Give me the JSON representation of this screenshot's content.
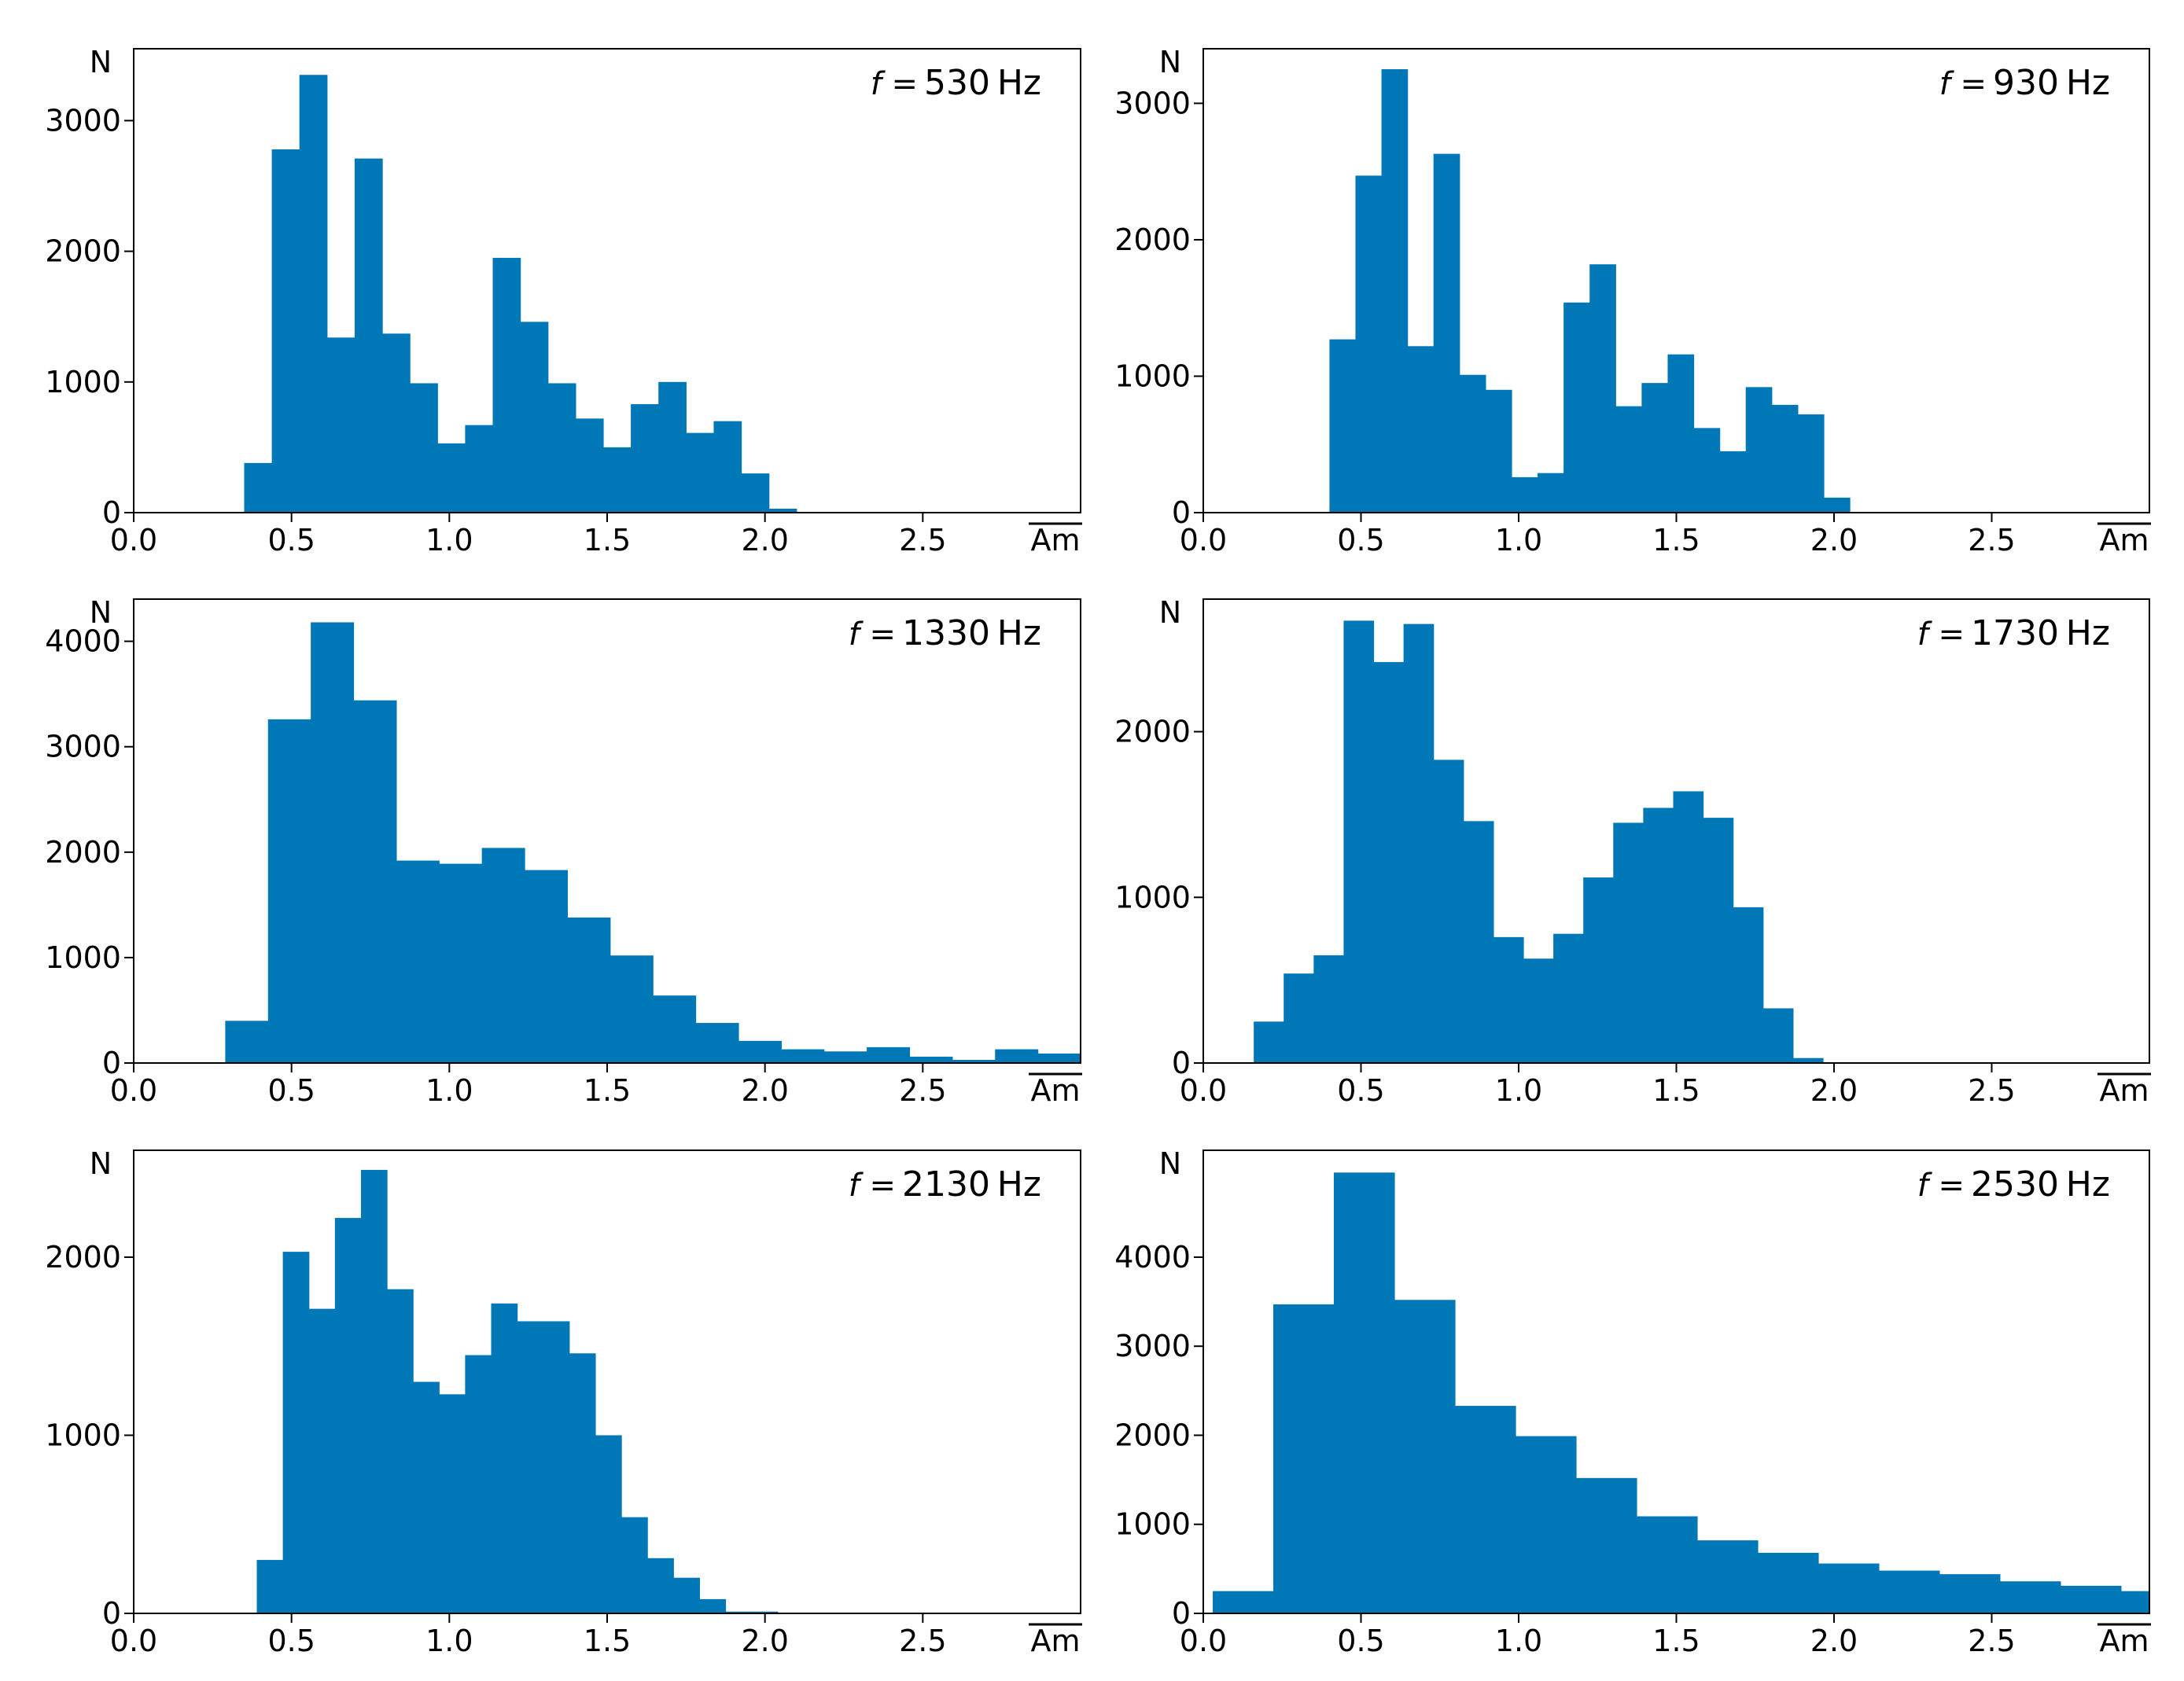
{
  "chart_data": [
    {
      "type": "bar",
      "title": "f = 530 Hz",
      "freq_prefix": "f =",
      "freq_value": "530",
      "freq_unit": "Hz",
      "xlabel": "Am",
      "ylabel": "N",
      "xlim": [
        0,
        3.0
      ],
      "ylim": [
        0,
        3550
      ],
      "xticks": [
        0.0,
        0.5,
        1.0,
        1.5,
        2.0,
        2.5
      ],
      "xtick_labels": [
        "0.0",
        "0.5",
        "1.0",
        "1.5",
        "2.0",
        "2.5"
      ],
      "yticks": [
        0,
        1000,
        2000,
        3000
      ],
      "ytick_labels": [
        "0",
        "1000",
        "2000",
        "3000"
      ],
      "bin_width": 0.0875,
      "bins": [
        {
          "x0": 0.35,
          "value": 380
        },
        {
          "x0": 0.4375,
          "value": 2780
        },
        {
          "x0": 0.525,
          "value": 3350
        },
        {
          "x0": 0.6125,
          "value": 1340
        },
        {
          "x0": 0.7,
          "value": 2710
        },
        {
          "x0": 0.7875,
          "value": 1370
        },
        {
          "x0": 0.875,
          "value": 990
        },
        {
          "x0": 0.9625,
          "value": 530
        },
        {
          "x0": 1.05,
          "value": 670
        },
        {
          "x0": 1.1375,
          "value": 1950
        },
        {
          "x0": 1.225,
          "value": 1460
        },
        {
          "x0": 1.3125,
          "value": 990
        },
        {
          "x0": 1.4,
          "value": 720
        },
        {
          "x0": 1.4875,
          "value": 500
        },
        {
          "x0": 1.575,
          "value": 830
        },
        {
          "x0": 1.6625,
          "value": 1000
        },
        {
          "x0": 1.75,
          "value": 610
        },
        {
          "x0": 1.8375,
          "value": 700
        },
        {
          "x0": 1.925,
          "value": 300
        },
        {
          "x0": 2.0125,
          "value": 30
        }
      ]
    },
    {
      "type": "bar",
      "title": "f = 930 Hz",
      "freq_prefix": "f =",
      "freq_value": "930",
      "freq_unit": "Hz",
      "xlabel": "Am",
      "ylabel": "N",
      "xlim": [
        0,
        3.0
      ],
      "ylim": [
        0,
        3400
      ],
      "xticks": [
        0.0,
        0.5,
        1.0,
        1.5,
        2.0,
        2.5
      ],
      "xtick_labels": [
        "0.0",
        "0.5",
        "1.0",
        "1.5",
        "2.0",
        "2.5"
      ],
      "yticks": [
        0,
        1000,
        2000,
        3000
      ],
      "ytick_labels": [
        "0",
        "1000",
        "2000",
        "3000"
      ],
      "bin_width": 0.0825,
      "bins": [
        {
          "x0": 0.4,
          "value": 1270
        },
        {
          "x0": 0.4825,
          "value": 2470
        },
        {
          "x0": 0.565,
          "value": 3250
        },
        {
          "x0": 0.6475,
          "value": 1220
        },
        {
          "x0": 0.73,
          "value": 2630
        },
        {
          "x0": 0.8125,
          "value": 1010
        },
        {
          "x0": 0.895,
          "value": 900
        },
        {
          "x0": 0.9775,
          "value": 260
        },
        {
          "x0": 1.06,
          "value": 290
        },
        {
          "x0": 1.1425,
          "value": 1540
        },
        {
          "x0": 1.225,
          "value": 1820
        },
        {
          "x0": 1.3075,
          "value": 780
        },
        {
          "x0": 1.39,
          "value": 950
        },
        {
          "x0": 1.4725,
          "value": 1160
        },
        {
          "x0": 1.555,
          "value": 620
        },
        {
          "x0": 1.6375,
          "value": 450
        },
        {
          "x0": 1.72,
          "value": 920
        },
        {
          "x0": 1.8025,
          "value": 790
        },
        {
          "x0": 1.885,
          "value": 720
        },
        {
          "x0": 1.9675,
          "value": 110
        }
      ]
    },
    {
      "type": "bar",
      "title": "f = 1330 Hz",
      "freq_prefix": "f =",
      "freq_value": "1330",
      "freq_unit": "Hz",
      "xlabel": "Am",
      "ylabel": "N",
      "xlim": [
        0,
        3.0
      ],
      "ylim": [
        0,
        4400
      ],
      "xticks": [
        0.0,
        0.5,
        1.0,
        1.5,
        2.0,
        2.5
      ],
      "xtick_labels": [
        "0.0",
        "0.5",
        "1.0",
        "1.5",
        "2.0",
        "2.5"
      ],
      "yticks": [
        0,
        1000,
        2000,
        3000,
        4000
      ],
      "ytick_labels": [
        "0",
        "1000",
        "2000",
        "3000",
        "4000"
      ],
      "bin_width": 0.1355,
      "bins": [
        {
          "x0": 0.29,
          "value": 400
        },
        {
          "x0": 0.4255,
          "value": 3260
        },
        {
          "x0": 0.561,
          "value": 4180
        },
        {
          "x0": 0.6965,
          "value": 3440
        },
        {
          "x0": 0.832,
          "value": 1920
        },
        {
          "x0": 0.9675,
          "value": 1890
        },
        {
          "x0": 1.103,
          "value": 2040
        },
        {
          "x0": 1.2385,
          "value": 1830
        },
        {
          "x0": 1.374,
          "value": 1380
        },
        {
          "x0": 1.5095,
          "value": 1020
        },
        {
          "x0": 1.645,
          "value": 640
        },
        {
          "x0": 1.7805,
          "value": 380
        },
        {
          "x0": 1.916,
          "value": 210
        },
        {
          "x0": 2.0515,
          "value": 130
        },
        {
          "x0": 2.187,
          "value": 110
        },
        {
          "x0": 2.3225,
          "value": 150
        },
        {
          "x0": 2.458,
          "value": 60
        },
        {
          "x0": 2.5935,
          "value": 30
        },
        {
          "x0": 2.729,
          "value": 130
        },
        {
          "x0": 2.8645,
          "value": 90
        }
      ]
    },
    {
      "type": "bar",
      "title": "f = 1730 Hz",
      "freq_prefix": "f =",
      "freq_value": "1730",
      "freq_unit": "Hz",
      "xlabel": "Am",
      "ylabel": "N",
      "xlim": [
        0,
        3.0
      ],
      "ylim": [
        0,
        2800
      ],
      "xticks": [
        0.0,
        0.5,
        1.0,
        1.5,
        2.0,
        2.5
      ],
      "xtick_labels": [
        "0.0",
        "0.5",
        "1.0",
        "1.5",
        "2.0",
        "2.5"
      ],
      "yticks": [
        0,
        1000,
        2000
      ],
      "ytick_labels": [
        "0",
        "1000",
        "2000"
      ],
      "bin_width": 0.095,
      "bins": [
        {
          "x0": 0.16,
          "value": 250
        },
        {
          "x0": 0.255,
          "value": 540
        },
        {
          "x0": 0.35,
          "value": 650
        },
        {
          "x0": 0.445,
          "value": 2670
        },
        {
          "x0": 0.54,
          "value": 2420
        },
        {
          "x0": 0.635,
          "value": 2650
        },
        {
          "x0": 0.73,
          "value": 1830
        },
        {
          "x0": 0.825,
          "value": 1460
        },
        {
          "x0": 0.92,
          "value": 760
        },
        {
          "x0": 1.015,
          "value": 630
        },
        {
          "x0": 1.11,
          "value": 780
        },
        {
          "x0": 1.205,
          "value": 1120
        },
        {
          "x0": 1.3,
          "value": 1450
        },
        {
          "x0": 1.395,
          "value": 1540
        },
        {
          "x0": 1.49,
          "value": 1640
        },
        {
          "x0": 1.585,
          "value": 1480
        },
        {
          "x0": 1.68,
          "value": 940
        },
        {
          "x0": 1.775,
          "value": 330
        },
        {
          "x0": 1.87,
          "value": 30
        }
      ]
    },
    {
      "type": "bar",
      "title": "f = 2130 Hz",
      "freq_prefix": "f =",
      "freq_value": "2130",
      "freq_unit": "Hz",
      "xlabel": "Am",
      "ylabel": "N",
      "xlim": [
        0,
        3.0
      ],
      "ylim": [
        0,
        2600
      ],
      "xticks": [
        0.0,
        0.5,
        1.0,
        1.5,
        2.0,
        2.5
      ],
      "xtick_labels": [
        "0.0",
        "0.5",
        "1.0",
        "1.5",
        "2.0",
        "2.5"
      ],
      "yticks": [
        0,
        1000,
        2000
      ],
      "ytick_labels": [
        "0",
        "1000",
        "2000"
      ],
      "bin_width": 0.0825,
      "bins": [
        {
          "x0": 0.39,
          "value": 300
        },
        {
          "x0": 0.4725,
          "value": 2030
        },
        {
          "x0": 0.555,
          "value": 1710
        },
        {
          "x0": 0.6375,
          "value": 2220
        },
        {
          "x0": 0.72,
          "value": 2490
        },
        {
          "x0": 0.8025,
          "value": 1820
        },
        {
          "x0": 0.885,
          "value": 1300
        },
        {
          "x0": 0.9675,
          "value": 1230
        },
        {
          "x0": 1.05,
          "value": 1450
        },
        {
          "x0": 1.1325,
          "value": 1740
        },
        {
          "x0": 1.215,
          "value": 1640
        },
        {
          "x0": 1.2975,
          "value": 1640
        },
        {
          "x0": 1.38,
          "value": 1460
        },
        {
          "x0": 1.4625,
          "value": 1000
        },
        {
          "x0": 1.545,
          "value": 540
        },
        {
          "x0": 1.6275,
          "value": 310
        },
        {
          "x0": 1.71,
          "value": 200
        },
        {
          "x0": 1.7925,
          "value": 80
        },
        {
          "x0": 1.875,
          "value": 10
        },
        {
          "x0": 1.9575,
          "value": 10
        }
      ]
    },
    {
      "type": "bar",
      "title": "f = 2530 Hz",
      "freq_prefix": "f =",
      "freq_value": "2530",
      "freq_unit": "Hz",
      "xlabel": "Am",
      "ylabel": "N",
      "xlim": [
        0,
        3.0
      ],
      "ylim": [
        0,
        5200
      ],
      "xticks": [
        0.0,
        0.5,
        1.0,
        1.5,
        2.0,
        2.5
      ],
      "xtick_labels": [
        "0.0",
        "0.5",
        "1.0",
        "1.5",
        "2.0",
        "2.5"
      ],
      "yticks": [
        0,
        1000,
        2000,
        3000,
        4000
      ],
      "ytick_labels": [
        "0",
        "1000",
        "2000",
        "3000",
        "4000"
      ],
      "bin_width": 0.192,
      "bins": [
        {
          "x0": 0.03,
          "value": 250
        },
        {
          "x0": 0.222,
          "value": 3470
        },
        {
          "x0": 0.414,
          "value": 4950
        },
        {
          "x0": 0.606,
          "value": 3520
        },
        {
          "x0": 0.798,
          "value": 2330
        },
        {
          "x0": 0.99,
          "value": 1990
        },
        {
          "x0": 1.182,
          "value": 1520
        },
        {
          "x0": 1.374,
          "value": 1090
        },
        {
          "x0": 1.566,
          "value": 820
        },
        {
          "x0": 1.758,
          "value": 680
        },
        {
          "x0": 1.95,
          "value": 560
        },
        {
          "x0": 2.142,
          "value": 480
        },
        {
          "x0": 2.334,
          "value": 440
        },
        {
          "x0": 2.526,
          "value": 360
        },
        {
          "x0": 2.718,
          "value": 310
        },
        {
          "x0": 2.91,
          "value": 250
        }
      ]
    }
  ],
  "colors": {
    "bar": "#0077B6",
    "axis": "#000000",
    "background": "#ffffff"
  }
}
